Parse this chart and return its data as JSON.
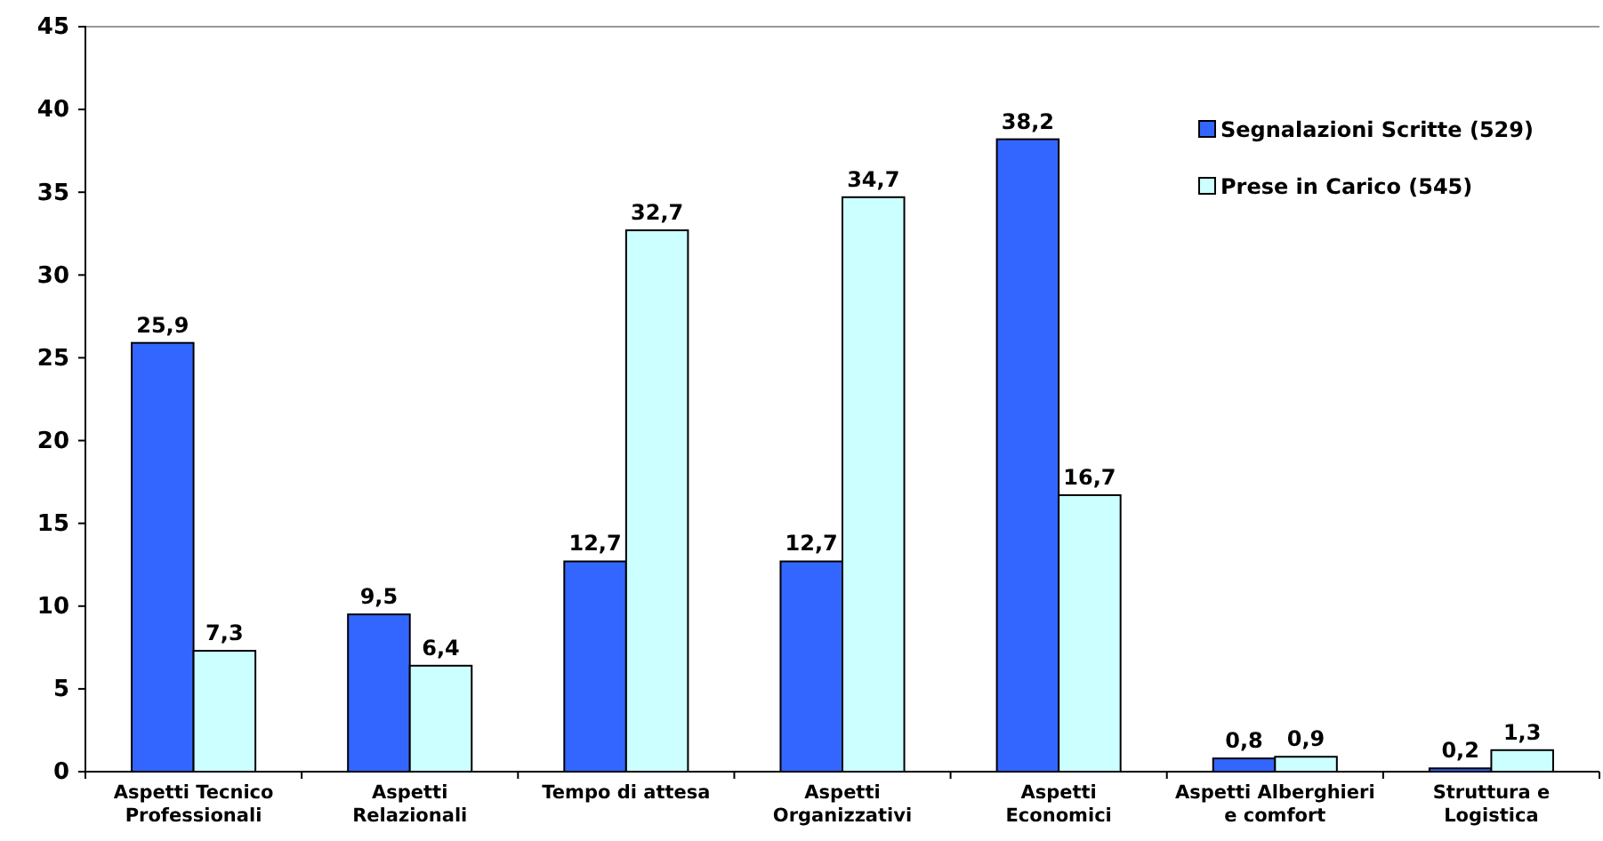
{
  "chart_data": {
    "type": "bar",
    "categories": [
      "Aspetti Tecnico Professionali",
      "Aspetti Relazionali",
      "Tempo di attesa",
      "Aspetti Organizzativi",
      "Aspetti Economici",
      "Aspetti Alberghieri e comfort",
      "Struttura e Logistica"
    ],
    "series": [
      {
        "name": "Segnalazioni Scritte (529)",
        "color": "#3366ff",
        "values": [
          25.9,
          9.5,
          12.7,
          12.7,
          38.2,
          0.8,
          0.2
        ],
        "value_labels": [
          "25,9",
          "9,5",
          "12,7",
          "12,7",
          "38,2",
          "0,8",
          "0,2"
        ]
      },
      {
        "name": "Prese in Carico (545)",
        "color": "#ccffff",
        "values": [
          7.3,
          6.4,
          32.7,
          34.7,
          16.7,
          0.9,
          1.3
        ],
        "value_labels": [
          "7,3",
          "6,4",
          "32,7",
          "34,7",
          "16,7",
          "0,9",
          "1,3"
        ]
      }
    ],
    "ylim": [
      0,
      45
    ],
    "yticks": [
      0,
      5,
      10,
      15,
      20,
      25,
      30,
      35,
      40,
      45
    ],
    "legend": "top right",
    "grid": false
  }
}
